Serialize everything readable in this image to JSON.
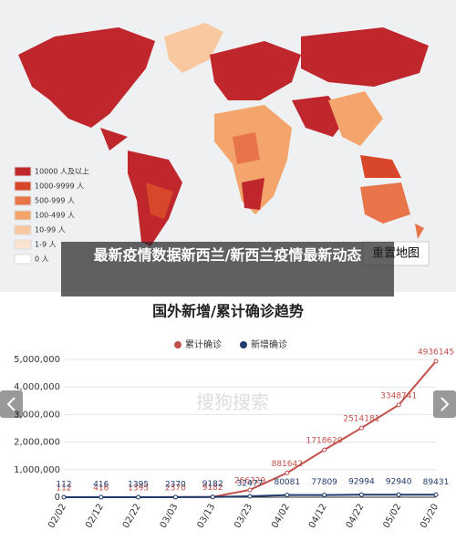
{
  "overlay_title": "最新疫情数据新西兰/新西兰疫情最新动态",
  "map": {
    "legend": [
      "10000 人及以上",
      "1000-9999 人",
      "500-999 人",
      "100-499 人",
      "10-99 人",
      "1-9 人",
      "0 人"
    ],
    "legend_colors": [
      "#c0272d",
      "#d9472b",
      "#e8754a",
      "#f3a56c",
      "#f8c9a0",
      "#fbe3cf",
      "#ffffff"
    ],
    "reset_button": "重置地图"
  },
  "watermark": "搜狗搜索",
  "chart_data": {
    "type": "line",
    "title": "国外新增/累计确诊趋势",
    "categories": [
      "02/02",
      "02/12",
      "02/22",
      "03/03",
      "03/13",
      "03/23",
      "04/02",
      "04/12",
      "04/22",
      "05/02",
      "05/20"
    ],
    "series": [
      {
        "name": "累计确诊",
        "color": "#c2504a",
        "values": [
          112,
          416,
          1395,
          2370,
          9182,
          266229,
          881642,
          1718620,
          2514181,
          3348741,
          4936145
        ]
      },
      {
        "name": "新增确诊",
        "color": "#1f3a6b",
        "values": [
          112,
          416,
          1395,
          2370,
          9182,
          32477,
          80081,
          77809,
          92994,
          92940,
          89431
        ]
      }
    ],
    "ylim": [
      0,
      5000000
    ],
    "yticks": [
      0,
      {
        "value": 1000000,
        "label": "1,000,000"
      },
      {
        "value": 2000000,
        "label": "2,000,000"
      },
      {
        "value": 3000000,
        "label": "3,000,000"
      },
      {
        "value": 4000000,
        "label": "4,000,000"
      },
      {
        "value": 5000000,
        "label": "5,000,000"
      }
    ],
    "grid": true
  }
}
